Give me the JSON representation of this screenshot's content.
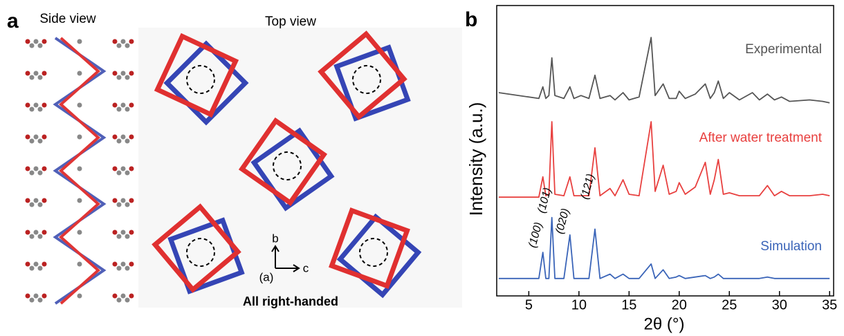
{
  "panel_a": {
    "label": "a",
    "side_view": "Side view",
    "top_view": "Top view",
    "caption": "All right-handed",
    "axis_b": "b",
    "axis_c": "c",
    "axis_note": "(a)"
  },
  "chart_data": {
    "type": "line",
    "label": "b",
    "xlabel": "2θ (°)",
    "ylabel": "Intensity (a.u.)",
    "x": [
      2,
      6.0,
      6.4,
      6.7,
      7.0,
      7.3,
      7.6,
      8.5,
      9.1,
      9.5,
      10.2,
      11.0,
      11.6,
      12.1,
      13.1,
      13.6,
      14.4,
      15.0,
      16.0,
      17.2,
      17.6,
      18.4,
      19.0,
      19.7,
      20.0,
      20.6,
      21.6,
      22.6,
      23.1,
      23.5,
      23.9,
      24.4,
      25.0,
      26.0,
      27.3,
      28.0,
      28.8,
      29.5,
      30.2,
      31.0,
      33.0,
      34.3,
      35
    ],
    "series": [
      {
        "name": "Experimental",
        "color": "#555555",
        "values": [
          70,
          68,
          72,
          68,
          69,
          82,
          69,
          68,
          72,
          68,
          69,
          68,
          76,
          68,
          69,
          67.5,
          70,
          67.5,
          68.5,
          89,
          69,
          73,
          68,
          68,
          70.5,
          68,
          69.5,
          73,
          68,
          70,
          74,
          68,
          70,
          67.5,
          70,
          67.5,
          69.5,
          67.5,
          68.5,
          67,
          67.5,
          67,
          66.5
        ]
      },
      {
        "name": "After water treatment",
        "color": "#e8403f",
        "values": [
          34,
          34,
          41,
          34.5,
          35,
          60,
          35,
          34.5,
          41,
          34.5,
          34.5,
          34.5,
          51,
          34.5,
          37,
          34.5,
          40,
          35,
          34.5,
          60,
          36,
          45,
          35,
          36,
          39,
          35,
          37.5,
          46,
          35,
          40,
          47,
          35,
          35.5,
          34.5,
          34.5,
          34.5,
          38,
          34.5,
          36,
          34.5,
          34.5,
          35,
          34.5
        ]
      },
      {
        "name": "Simulation",
        "color": "#3a64b8",
        "values": [
          6,
          6,
          15,
          6,
          6,
          27,
          6,
          6,
          21,
          6,
          6,
          6,
          23,
          6,
          7.5,
          6,
          7.5,
          6,
          6,
          11,
          6,
          9,
          6,
          6.5,
          7,
          6,
          6.5,
          7,
          6,
          6.5,
          7.5,
          6,
          6,
          6,
          6,
          6,
          6.5,
          6,
          6,
          6,
          6,
          6,
          6
        ]
      }
    ],
    "annotations": [
      {
        "text": "(100)",
        "x": 6.4
      },
      {
        "text": "(101)",
        "x": 7.3
      },
      {
        "text": "(020)",
        "x": 9.1
      },
      {
        "text": "(121)",
        "x": 11.6
      }
    ],
    "xlim": [
      1.8,
      35.4
    ],
    "ylim": [
      0,
      100
    ],
    "xticks": [
      5,
      10,
      15,
      20,
      25,
      30,
      35
    ]
  }
}
